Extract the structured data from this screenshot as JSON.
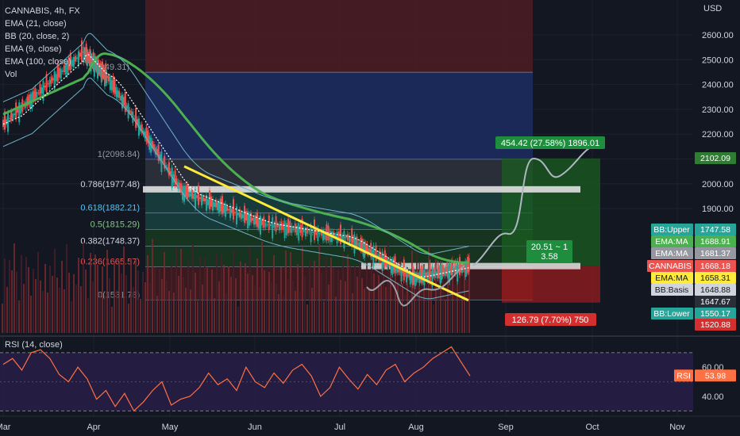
{
  "header": {
    "symbol": "CANNABIS, 4h, FX",
    "currency": "USD"
  },
  "indicators": [
    "EMA (21, close)",
    "BB (20, close, 2)",
    "EMA (9, close)",
    "EMA (100, close)",
    "Vol"
  ],
  "rsi_label": "RSI (14, close)",
  "colors": {
    "background": "#131722",
    "ema21": "#ffffff",
    "ema100": "#4caf50",
    "bollinger": "#6fb3c7",
    "trendline": "#ffeb3b",
    "long_zone": "#1b5e20",
    "short_zone": "#b71c1c",
    "rsi_line": "#ff7043",
    "rsi_band": "#2a1f4a"
  },
  "chart_data": [
    {
      "type": "line",
      "title": "CANNABIS, 4h, FX",
      "ylabel": "USD",
      "x_labels": [
        "Mar",
        "Apr",
        "May",
        "Jun",
        "Jul",
        "Aug",
        "Sep",
        "Oct",
        "Nov"
      ],
      "y_ticks": [
        1900,
        2000,
        2100,
        2200,
        2300,
        2400,
        2500,
        2600
      ],
      "ylim": [
        1500,
        2700
      ],
      "price_path": {
        "x": [
          "Mar",
          "Apr",
          "Apr",
          "May",
          "Jun",
          "Jul",
          "Aug",
          "Aug"
        ],
        "y": [
          2240,
          2530,
          2430,
          1970,
          1840,
          1780,
          1620,
          1668
        ]
      },
      "fibonacci": [
        {
          "level": "1",
          "value": "2098.84",
          "text": "1(2098.84)"
        },
        {
          "level": "0.786",
          "value": "1977.48",
          "text": "0.786(1977.48)"
        },
        {
          "level": "0.618",
          "value": "1882.21",
          "text": "0.618(1882.21)"
        },
        {
          "level": "0.5",
          "value": "1815.29",
          "text": "0.5(1815.29)"
        },
        {
          "level": "0.382",
          "value": "1748.37",
          "text": "0.382(1748.37)"
        },
        {
          "level": "0.236",
          "value": "1665.57",
          "text": "0.236(1665.57)"
        },
        {
          "level": "0",
          "value": "1531.78",
          "text": "0(1531.78)"
        },
        {
          "level": "",
          "value": "2449.31",
          "text": "(2449.31)"
        }
      ],
      "annotations": [
        {
          "text": "454.42 (27.58%) 1896.01",
          "kind": "target"
        },
        {
          "text": "20.51 ~ 1",
          "kind": "ratio"
        },
        {
          "text": "3.58",
          "kind": "ratio"
        },
        {
          "text": "126.79 (7.70%) 750",
          "kind": "stop"
        }
      ],
      "price_labels": [
        {
          "name": "",
          "value": "2102.09",
          "color": "#2e7d32"
        },
        {
          "name": "BB:Upper",
          "value": "1747.58",
          "color": "#26a69a"
        },
        {
          "name": "EMA:MA",
          "value": "1688.91",
          "color": "#4caf50"
        },
        {
          "name": "EMA:MA",
          "value": "1681.37",
          "color": "#9598a1"
        },
        {
          "name": "CANNABIS",
          "value": "1668.18",
          "color": "#ef5350"
        },
        {
          "name": "EMA:MA",
          "value": "1658.31",
          "color": "#ffeb3b"
        },
        {
          "name": "BB:Basis",
          "value": "1648.88",
          "color": "#d1d4dc"
        },
        {
          "name": "",
          "value": "1647.67",
          "color": "#2a2e39"
        },
        {
          "name": "BB:Lower",
          "value": "1550.17",
          "color": "#26a69a"
        },
        {
          "name": "",
          "value": "1520.88",
          "color": "#d32f2f"
        }
      ]
    },
    {
      "type": "line",
      "title": "RSI (14, close)",
      "y_ticks": [
        40,
        60
      ],
      "ylim": [
        28,
        77
      ],
      "series": [
        {
          "name": "RSI",
          "last": "53.98"
        }
      ],
      "rsi_path": [
        62,
        66,
        58,
        70,
        72,
        66,
        55,
        50,
        60,
        52,
        38,
        44,
        33,
        42,
        30,
        36,
        44,
        50,
        34,
        38,
        40,
        46,
        56,
        48,
        52,
        44,
        60,
        50,
        46,
        56,
        49,
        58,
        62,
        54,
        40,
        46,
        60,
        52,
        45,
        55,
        48,
        58,
        62,
        50,
        56,
        60,
        66,
        70,
        74,
        64,
        54
      ]
    }
  ]
}
